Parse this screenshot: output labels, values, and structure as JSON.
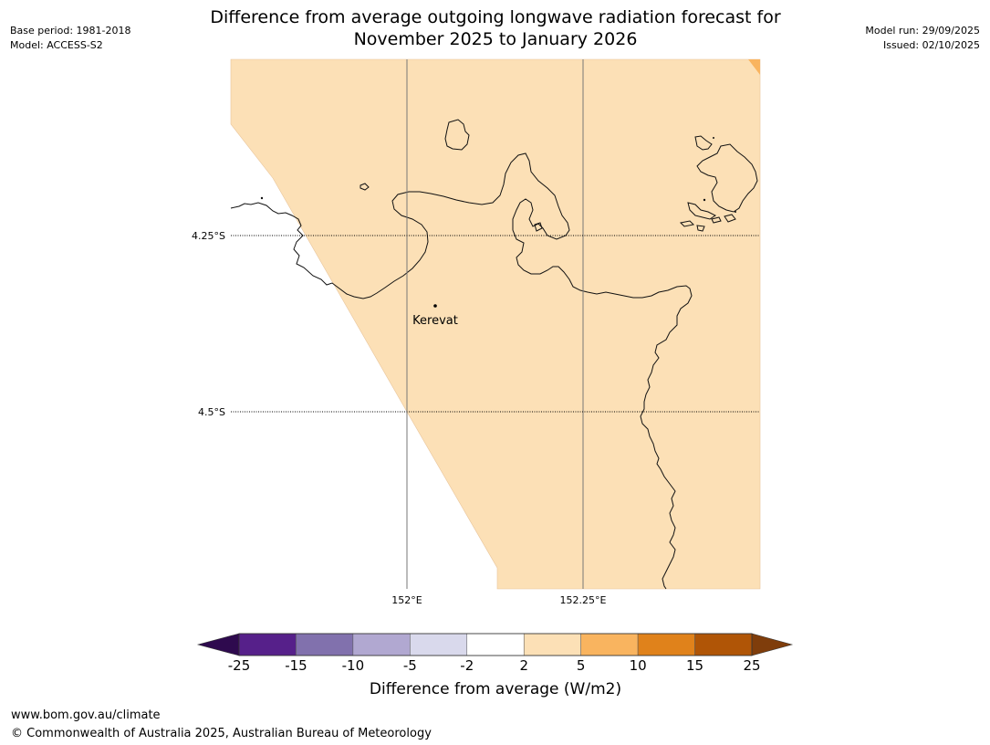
{
  "header": {
    "title_line1": "Difference from average outgoing longwave radiation forecast for",
    "title_line2": "November 2025 to January 2026",
    "base_period": "Base period: 1981-2018",
    "model": "Model: ACCESS-S2",
    "model_run": "Model run: 29/09/2025",
    "issued": "Issued: 02/10/2025"
  },
  "map": {
    "lat_labels": [
      "4.25°S",
      "4.5°S"
    ],
    "lon_labels": [
      "152°E",
      "152.25°E"
    ],
    "place": "Kerevat",
    "fill_category": "2 to 5",
    "fill_color": "#fce0b6",
    "corner_color": "#f9b45f"
  },
  "colorbar": {
    "title": "Difference from average (W/m2)",
    "ticks": [
      "-25",
      "-15",
      "-10",
      "-5",
      "-2",
      "2",
      "5",
      "10",
      "15",
      "25"
    ],
    "colors": [
      "#56208a",
      "#8171ad",
      "#b1a8d1",
      "#d9d9ec",
      "#ffffff",
      "#fce0b6",
      "#f9b45f",
      "#e0821b",
      "#b05506"
    ],
    "under_color": "#2e0a4e",
    "over_color": "#7f3d0b"
  },
  "footer": {
    "url": "www.bom.gov.au/climate",
    "copyright": "© Commonwealth of Australia 2025, Australian Bureau of Meteorology"
  }
}
